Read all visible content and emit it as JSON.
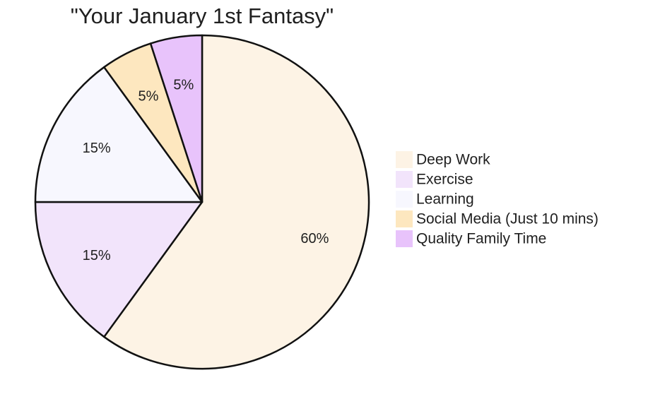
{
  "chart_data": {
    "type": "pie",
    "title": "\"Your January 1st Fantasy\"",
    "categories": [
      "Deep Work",
      "Exercise",
      "Learning",
      "Social Media (Just 10 mins)",
      "Quality Family Time"
    ],
    "values": [
      60,
      15,
      15,
      5,
      5
    ],
    "value_labels": [
      "60%",
      "15%",
      "15%",
      "5%",
      "5%"
    ],
    "colors": [
      "#fdf3e5",
      "#f2e4fb",
      "#f7f7fe",
      "#fde7bf",
      "#e8c3fb"
    ],
    "start_angle": "12 o'clock",
    "direction": "clockwise",
    "legend": "right"
  }
}
